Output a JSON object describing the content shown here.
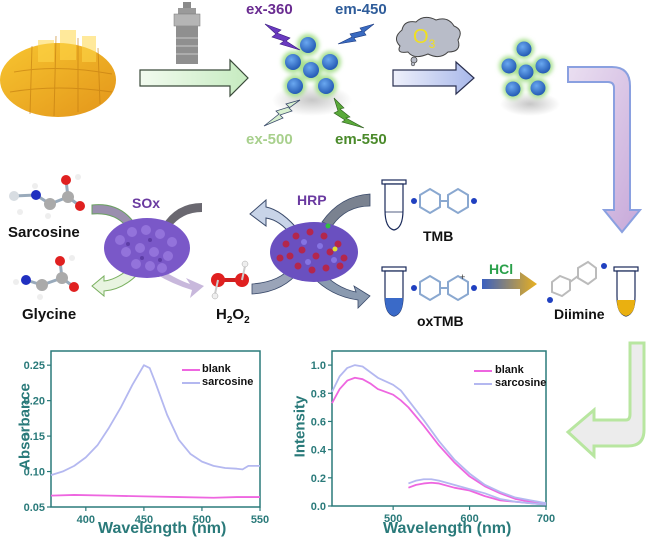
{
  "top_row": {
    "excitation_labels": [
      {
        "text": "ex-360",
        "color": "#6a2c91"
      },
      {
        "text": "ex-500",
        "color": "#a8d08d"
      }
    ],
    "emission_labels": [
      {
        "text": "em-450",
        "color": "#2e5c9a"
      },
      {
        "text": "em-550",
        "color": "#4a8a2a"
      }
    ],
    "oxidant": {
      "main": "O",
      "sub": "3"
    }
  },
  "middle_row": {
    "substrate": "Sarcosine",
    "product": "Glycine",
    "enzyme_1": "SOx",
    "peroxide": {
      "main": "H",
      "sub1": "2",
      "mid": "O",
      "sub2": "2"
    },
    "enzyme_2": "HRP",
    "reagent": "TMB",
    "oxidized": "oxTMB",
    "acid": "HCl",
    "final": "Diimine"
  },
  "colors": {
    "axis": "#2a7a7a",
    "blank": "#ee66e0",
    "sarcosine": "#b4b8f0",
    "enzyme_label": "#6a3aa0",
    "acid_label": "#2aa04a"
  },
  "chart_data": [
    {
      "type": "line",
      "title": "",
      "xlabel": "Wavelength (nm)",
      "ylabel": "Absorbance",
      "xlim": [
        370,
        550
      ],
      "ylim": [
        0.05,
        0.27
      ],
      "xticks": [
        "400",
        "450",
        "500",
        "550"
      ],
      "yticks": [
        "0.05",
        "0.10",
        "0.15",
        "0.20",
        "0.25"
      ],
      "legend": [
        "blank",
        "sarcosine"
      ],
      "legend_position": "upper right",
      "grid": false,
      "series": [
        {
          "name": "blank",
          "x": [
            370,
            390,
            420,
            450,
            480,
            510,
            530,
            550
          ],
          "values": [
            0.066,
            0.067,
            0.066,
            0.065,
            0.064,
            0.063,
            0.064,
            0.064
          ]
        },
        {
          "name": "sarcosine",
          "x": [
            370,
            380,
            390,
            400,
            410,
            420,
            430,
            440,
            450,
            455,
            460,
            470,
            480,
            490,
            500,
            510,
            520,
            530,
            535,
            540,
            550
          ],
          "values": [
            0.095,
            0.1,
            0.108,
            0.12,
            0.137,
            0.162,
            0.19,
            0.222,
            0.25,
            0.246,
            0.225,
            0.18,
            0.145,
            0.125,
            0.114,
            0.108,
            0.105,
            0.104,
            0.103,
            0.108,
            0.108
          ]
        }
      ]
    },
    {
      "type": "line",
      "title": "",
      "xlabel": "Wavelength (nm)",
      "ylabel": "Intensity",
      "xlim": [
        420,
        700
      ],
      "ylim": [
        0.0,
        1.1
      ],
      "xticks": [
        "500",
        "600",
        "700"
      ],
      "yticks": [
        "0.0",
        "0.2",
        "0.4",
        "0.6",
        "0.8",
        "1.0"
      ],
      "legend": [
        "blank",
        "sarcosine"
      ],
      "legend_position": "upper right",
      "grid": false,
      "series": [
        {
          "name": "blank (ex-360)",
          "x": [
            420,
            430,
            440,
            450,
            460,
            470,
            480,
            500,
            510,
            520,
            540,
            560,
            580,
            600,
            620,
            640,
            660,
            680,
            700
          ],
          "values": [
            0.73,
            0.83,
            0.89,
            0.91,
            0.9,
            0.87,
            0.83,
            0.79,
            0.75,
            0.7,
            0.57,
            0.43,
            0.31,
            0.21,
            0.14,
            0.09,
            0.05,
            0.03,
            0.01
          ]
        },
        {
          "name": "sarcosine (ex-360)",
          "x": [
            420,
            430,
            440,
            450,
            460,
            470,
            480,
            500,
            510,
            520,
            540,
            560,
            580,
            600,
            620,
            640,
            660,
            680,
            700
          ],
          "values": [
            0.81,
            0.92,
            0.98,
            1.0,
            0.99,
            0.95,
            0.91,
            0.86,
            0.82,
            0.75,
            0.61,
            0.46,
            0.33,
            0.23,
            0.15,
            0.1,
            0.06,
            0.04,
            0.02
          ]
        },
        {
          "name": "blank (ex-500)",
          "x": [
            520,
            530,
            540,
            550,
            560,
            580,
            600,
            620,
            640,
            660,
            680,
            700
          ],
          "values": [
            0.13,
            0.15,
            0.16,
            0.165,
            0.16,
            0.13,
            0.11,
            0.07,
            0.04,
            0.03,
            0.02,
            0.01
          ]
        },
        {
          "name": "sarcosine (ex-500)",
          "x": [
            520,
            530,
            540,
            550,
            560,
            580,
            600,
            620,
            640,
            660,
            680,
            700
          ],
          "values": [
            0.16,
            0.18,
            0.19,
            0.19,
            0.18,
            0.15,
            0.12,
            0.09,
            0.05,
            0.03,
            0.02,
            0.01
          ]
        }
      ]
    }
  ]
}
